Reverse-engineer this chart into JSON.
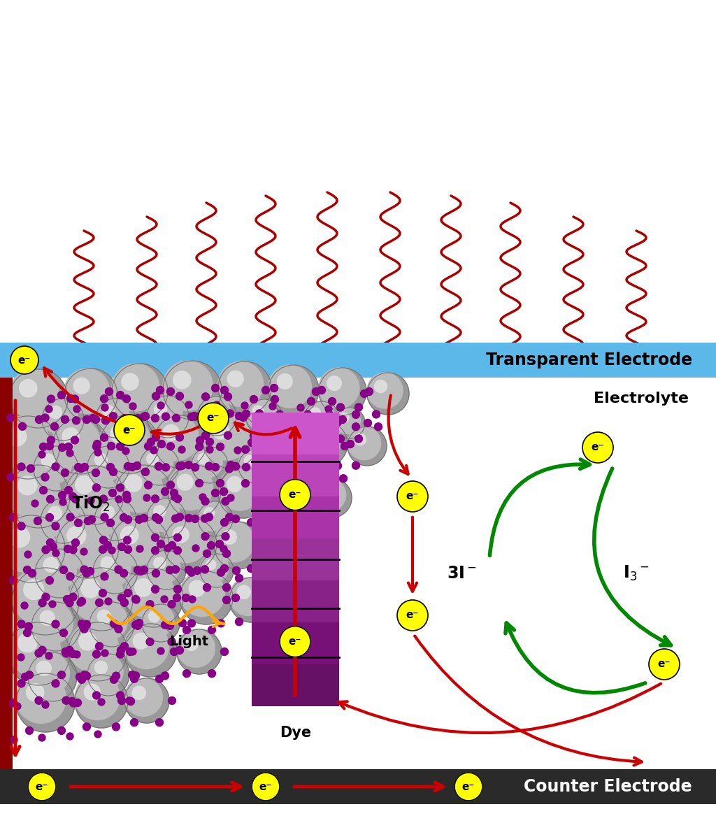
{
  "bg_color": "#ffffff",
  "wavy_color": "#AA0000",
  "transparent_electrode_color": "#5BB8E8",
  "counter_electrode_color": "#2a2a2a",
  "electron_color": "#FFFF00",
  "electron_border": "#000000",
  "red_arrow_color": "#CC0000",
  "green_arrow_color": "#008800",
  "orange_wave_color": "#FFA500",
  "label_transparent": "Transparent Electrode",
  "label_counter": "Counter Electrode",
  "label_electrolyte": "Electrolyte",
  "label_dye": "Dye",
  "label_light": "Light",
  "label_tio2": "TiO$_2$",
  "purple_dot_color": "#880088",
  "sphere_base_color": "#A0A0A0",
  "sphere_highlight_color": "#D0D0D0",
  "sphere_edge_color": "#606060",
  "dye_colors": [
    "#CC55CC",
    "#BB44BB",
    "#AA33AA",
    "#993399",
    "#882288",
    "#771177",
    "#661166"
  ],
  "left_bar_color": "#8B0000"
}
